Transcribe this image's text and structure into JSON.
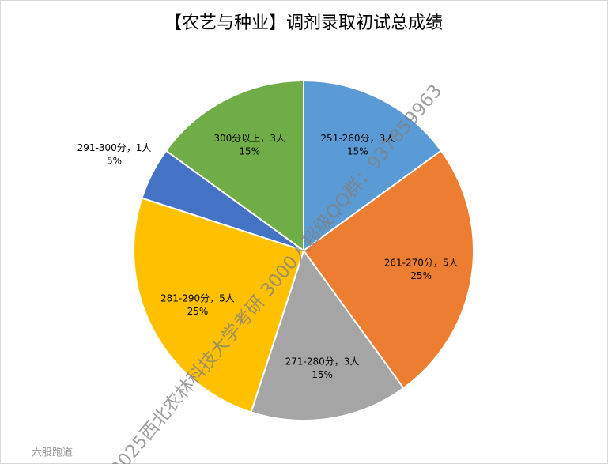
{
  "chart_data": {
    "type": "pie",
    "title": "【农艺与种业】调剂录取初试总成绩",
    "categories": [
      "251-260分",
      "261-270分",
      "271-280分",
      "281-290分",
      "291-300分",
      "300分以上"
    ],
    "values": [
      3,
      5,
      3,
      5,
      1,
      3
    ],
    "value_labels": [
      "3人",
      "5人",
      "3人",
      "5人",
      "1人",
      "3人"
    ],
    "percentages": [
      15,
      25,
      15,
      25,
      5,
      15
    ],
    "percentage_labels": [
      "15%",
      "25%",
      "15%",
      "25%",
      "5%",
      "15%"
    ],
    "label_separator": "，",
    "colors": [
      "#5b9bd5",
      "#ed7d31",
      "#a5a5a5",
      "#ffc000",
      "#4472c4",
      "#70ad47"
    ]
  },
  "watermark": {
    "text": "2025西北农林科技大学考研 3000人超级QQ群：937859963",
    "logo": "六股跑道"
  }
}
